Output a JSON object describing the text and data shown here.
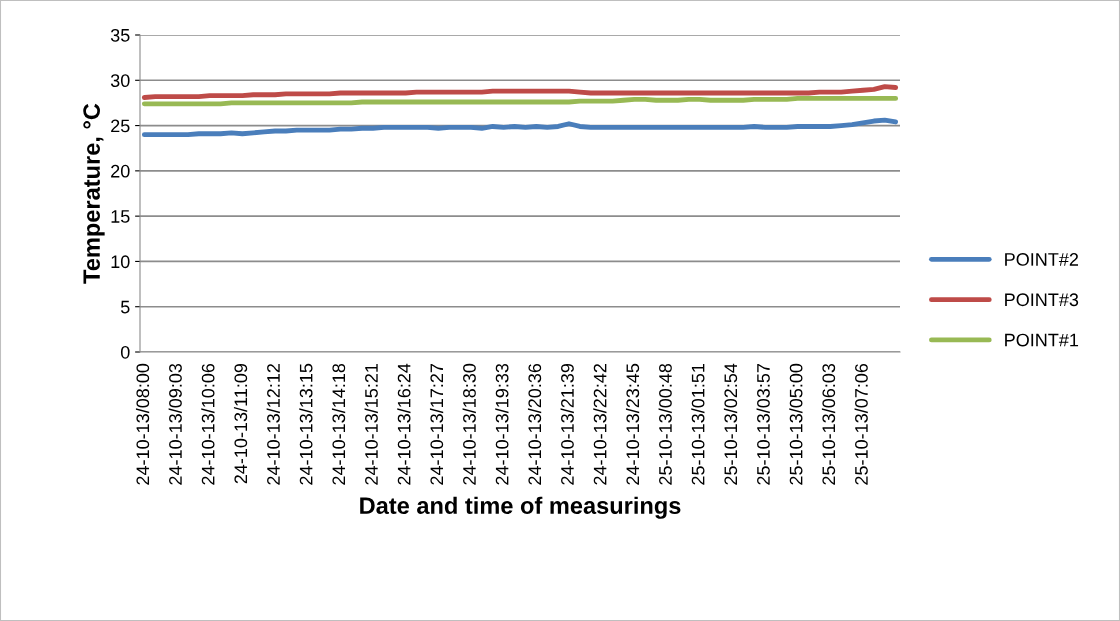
{
  "chart_data": {
    "type": "line",
    "xlabel": "Date and time of measurings",
    "ylabel": "Temperature, °C",
    "categories": [
      "24-10-13/08:00",
      null,
      null,
      "24-10-13/09:03",
      null,
      null,
      "24-10-13/10:06",
      null,
      null,
      "24-10-13/11:09",
      null,
      null,
      "24-10-13/12:12",
      null,
      null,
      "24-10-13/13:15",
      null,
      null,
      "24-10-13/14:18",
      null,
      null,
      "24-10-13/15:21",
      null,
      null,
      "24-10-13/16:24",
      null,
      null,
      "24-10-13/17:27",
      null,
      null,
      "24-10-13/18:30",
      null,
      null,
      "24-10-13/19:33",
      null,
      null,
      "24-10-13/20:36",
      null,
      null,
      "24-10-13/21:39",
      null,
      null,
      "24-10-13/22:42",
      null,
      null,
      "24-10-13/23:45",
      null,
      null,
      "25-10-13/00:48",
      null,
      null,
      "25-10-13/01:51",
      null,
      null,
      "25-10-13/02:54",
      null,
      null,
      "25-10-13/03:57",
      null,
      null,
      "25-10-13/05:00",
      null,
      null,
      "25-10-13/06:03",
      null,
      null,
      "25-10-13/07:06",
      null,
      null,
      null
    ],
    "series": [
      {
        "name": "POINT#2",
        "color": "#4a7ebb",
        "values": [
          24.0,
          24.0,
          24.0,
          24.0,
          24.0,
          24.1,
          24.1,
          24.1,
          24.2,
          24.1,
          24.2,
          24.3,
          24.4,
          24.4,
          24.5,
          24.5,
          24.5,
          24.5,
          24.6,
          24.6,
          24.7,
          24.7,
          24.8,
          24.8,
          24.8,
          24.8,
          24.8,
          24.7,
          24.8,
          24.8,
          24.8,
          24.7,
          24.9,
          24.8,
          24.9,
          24.8,
          24.9,
          24.8,
          24.9,
          25.2,
          24.9,
          24.8,
          24.8,
          24.8,
          24.8,
          24.8,
          24.8,
          24.8,
          24.8,
          24.8,
          24.8,
          24.8,
          24.8,
          24.8,
          24.8,
          24.8,
          24.9,
          24.8,
          24.8,
          24.8,
          24.9,
          24.9,
          24.9,
          24.9,
          25.0,
          25.1,
          25.3,
          25.5,
          25.6,
          25.4
        ]
      },
      {
        "name": "POINT#3",
        "color": "#be4b48",
        "values": [
          28.1,
          28.2,
          28.2,
          28.2,
          28.2,
          28.2,
          28.3,
          28.3,
          28.3,
          28.3,
          28.4,
          28.4,
          28.4,
          28.5,
          28.5,
          28.5,
          28.5,
          28.5,
          28.6,
          28.6,
          28.6,
          28.6,
          28.6,
          28.6,
          28.6,
          28.7,
          28.7,
          28.7,
          28.7,
          28.7,
          28.7,
          28.7,
          28.8,
          28.8,
          28.8,
          28.8,
          28.8,
          28.8,
          28.8,
          28.8,
          28.7,
          28.6,
          28.6,
          28.6,
          28.6,
          28.6,
          28.6,
          28.6,
          28.6,
          28.6,
          28.6,
          28.6,
          28.6,
          28.6,
          28.6,
          28.6,
          28.6,
          28.6,
          28.6,
          28.6,
          28.6,
          28.6,
          28.7,
          28.7,
          28.7,
          28.8,
          28.9,
          29.0,
          29.3,
          29.2
        ]
      },
      {
        "name": "POINT#1",
        "color": "#98b954",
        "values": [
          27.4,
          27.4,
          27.4,
          27.4,
          27.4,
          27.4,
          27.4,
          27.4,
          27.5,
          27.5,
          27.5,
          27.5,
          27.5,
          27.5,
          27.5,
          27.5,
          27.5,
          27.5,
          27.5,
          27.5,
          27.6,
          27.6,
          27.6,
          27.6,
          27.6,
          27.6,
          27.6,
          27.6,
          27.6,
          27.6,
          27.6,
          27.6,
          27.6,
          27.6,
          27.6,
          27.6,
          27.6,
          27.6,
          27.6,
          27.6,
          27.7,
          27.7,
          27.7,
          27.7,
          27.8,
          27.9,
          27.9,
          27.8,
          27.8,
          27.8,
          27.9,
          27.9,
          27.8,
          27.8,
          27.8,
          27.8,
          27.9,
          27.9,
          27.9,
          27.9,
          28.0,
          28.0,
          28.0,
          28.0,
          28.0,
          28.0,
          28.0,
          28.0,
          28.0,
          28.0
        ]
      }
    ],
    "ylim": [
      0,
      35
    ],
    "yticks": [
      0,
      5,
      10,
      15,
      20,
      25,
      30,
      35
    ],
    "grid": "y",
    "legend": "right",
    "marker": "none",
    "line_style": "solid"
  }
}
